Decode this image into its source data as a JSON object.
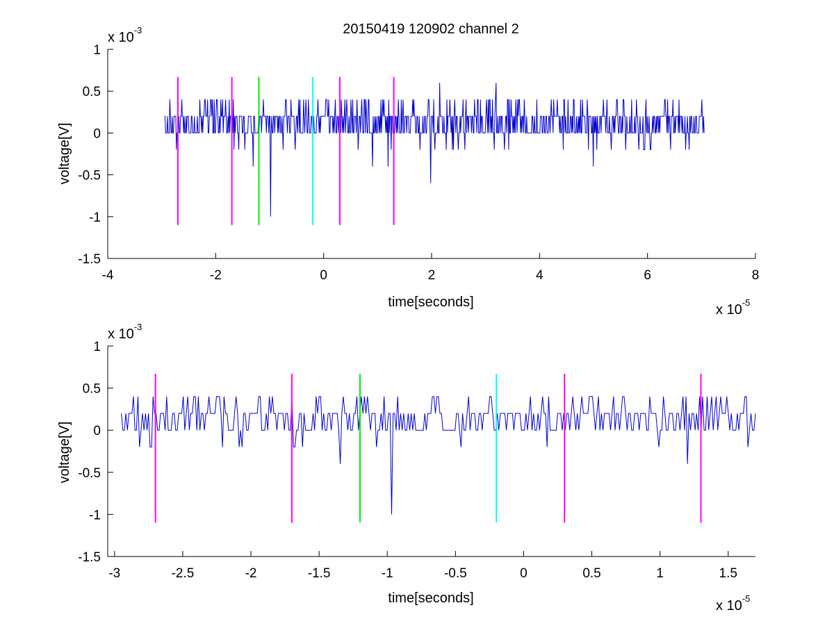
{
  "figure_title": "20150419 120902 channel 2",
  "colors": {
    "signal": "#0000cc",
    "magenta": "#ff00ff",
    "green": "#00ee00",
    "cyan": "#00ffff",
    "axis": "#000000"
  },
  "chart_data": [
    {
      "type": "line",
      "title": "20150419 120902 channel 2",
      "xlabel": "time[seconds]",
      "ylabel": "voltage[V]",
      "x_multiplier": {
        "base": "x 10",
        "exponent": "-5"
      },
      "y_multiplier": {
        "base": "x 10",
        "exponent": "-3"
      },
      "xlim": [
        -4,
        8
      ],
      "ylim": [
        -1.5,
        1
      ],
      "xticks": [
        -4,
        -2,
        0,
        2,
        4,
        6,
        8
      ],
      "xtick_labels": [
        "-4",
        "-2",
        "0",
        "2",
        "4",
        "6",
        "8"
      ],
      "yticks": [
        -1.5,
        -1,
        -0.5,
        0,
        0.5,
        1
      ],
      "ytick_labels": [
        "-1.5",
        "-1",
        "-0.5",
        "0",
        "0.5",
        "1"
      ],
      "grid": false,
      "legend": "none",
      "signal_range": [
        -2.95,
        7.05
      ],
      "markers": [
        {
          "x": -2.7,
          "color": "magenta",
          "y_range": [
            -1.1,
            0.67
          ]
        },
        {
          "x": -1.7,
          "color": "magenta",
          "y_range": [
            -1.1,
            0.67
          ]
        },
        {
          "x": -1.2,
          "color": "green",
          "y_range": [
            -1.1,
            0.67
          ]
        },
        {
          "x": -0.2,
          "color": "cyan",
          "y_range": [
            -1.1,
            0.67
          ]
        },
        {
          "x": 0.3,
          "color": "magenta",
          "y_range": [
            -1.1,
            0.67
          ]
        },
        {
          "x": 1.3,
          "color": "magenta",
          "y_range": [
            -1.1,
            0.67
          ]
        }
      ],
      "series": [
        {
          "color": "signal",
          "note_levels": [
            0,
            0.2,
            0.4
          ],
          "spikes": [
            {
              "x": -1.31,
              "y": -0.4
            },
            {
              "x": -0.98,
              "y": -1.0
            },
            {
              "x": 0.9,
              "y": -0.4
            },
            {
              "x": 1.2,
              "y": -0.4
            },
            {
              "x": 1.98,
              "y": -0.6
            },
            {
              "x": 2.15,
              "y": 0.6
            },
            {
              "x": 3.2,
              "y": 0.6
            },
            {
              "x": 5.0,
              "y": -0.4
            }
          ]
        }
      ]
    },
    {
      "type": "line",
      "xlabel": "time[seconds]",
      "ylabel": "voltage[V]",
      "x_multiplier": {
        "base": "x 10",
        "exponent": "-5"
      },
      "y_multiplier": {
        "base": "x 10",
        "exponent": "-3"
      },
      "xlim": [
        -3.05,
        1.7
      ],
      "ylim": [
        -1.5,
        1
      ],
      "xticks": [
        -3,
        -2.5,
        -2,
        -1.5,
        -1,
        -0.5,
        0,
        0.5,
        1,
        1.5
      ],
      "xtick_labels": [
        "-3",
        "-2.5",
        "-2",
        "-1.5",
        "-1",
        "-0.5",
        "0",
        "0.5",
        "1",
        "1.5"
      ],
      "yticks": [
        -1.5,
        -1,
        -0.5,
        0,
        0.5,
        1
      ],
      "ytick_labels": [
        "-1.5",
        "-1",
        "-0.5",
        "0",
        "0.5",
        "1"
      ],
      "grid": false,
      "legend": "none",
      "signal_range": [
        -2.95,
        1.7
      ],
      "markers": [
        {
          "x": -2.7,
          "color": "magenta",
          "y_range": [
            -1.1,
            0.67
          ]
        },
        {
          "x": -1.7,
          "color": "magenta",
          "y_range": [
            -1.1,
            0.67
          ]
        },
        {
          "x": -1.2,
          "color": "green",
          "y_range": [
            -1.1,
            0.67
          ]
        },
        {
          "x": -0.2,
          "color": "cyan",
          "y_range": [
            -1.1,
            0.67
          ]
        },
        {
          "x": 0.3,
          "color": "magenta",
          "y_range": [
            -1.1,
            0.67
          ]
        },
        {
          "x": 1.3,
          "color": "magenta",
          "y_range": [
            -1.1,
            0.67
          ]
        }
      ],
      "series": [
        {
          "color": "signal",
          "note_levels": [
            0,
            0.2,
            0.4
          ],
          "spikes": [
            {
              "x": -2.72,
              "y": 0.4
            },
            {
              "x": -1.7,
              "y": 0.4
            },
            {
              "x": -1.35,
              "y": -0.4
            },
            {
              "x": -0.97,
              "y": -1.0
            },
            {
              "x": 1.2,
              "y": -0.4
            },
            {
              "x": 0.55,
              "y": 0.4
            }
          ]
        }
      ]
    }
  ]
}
